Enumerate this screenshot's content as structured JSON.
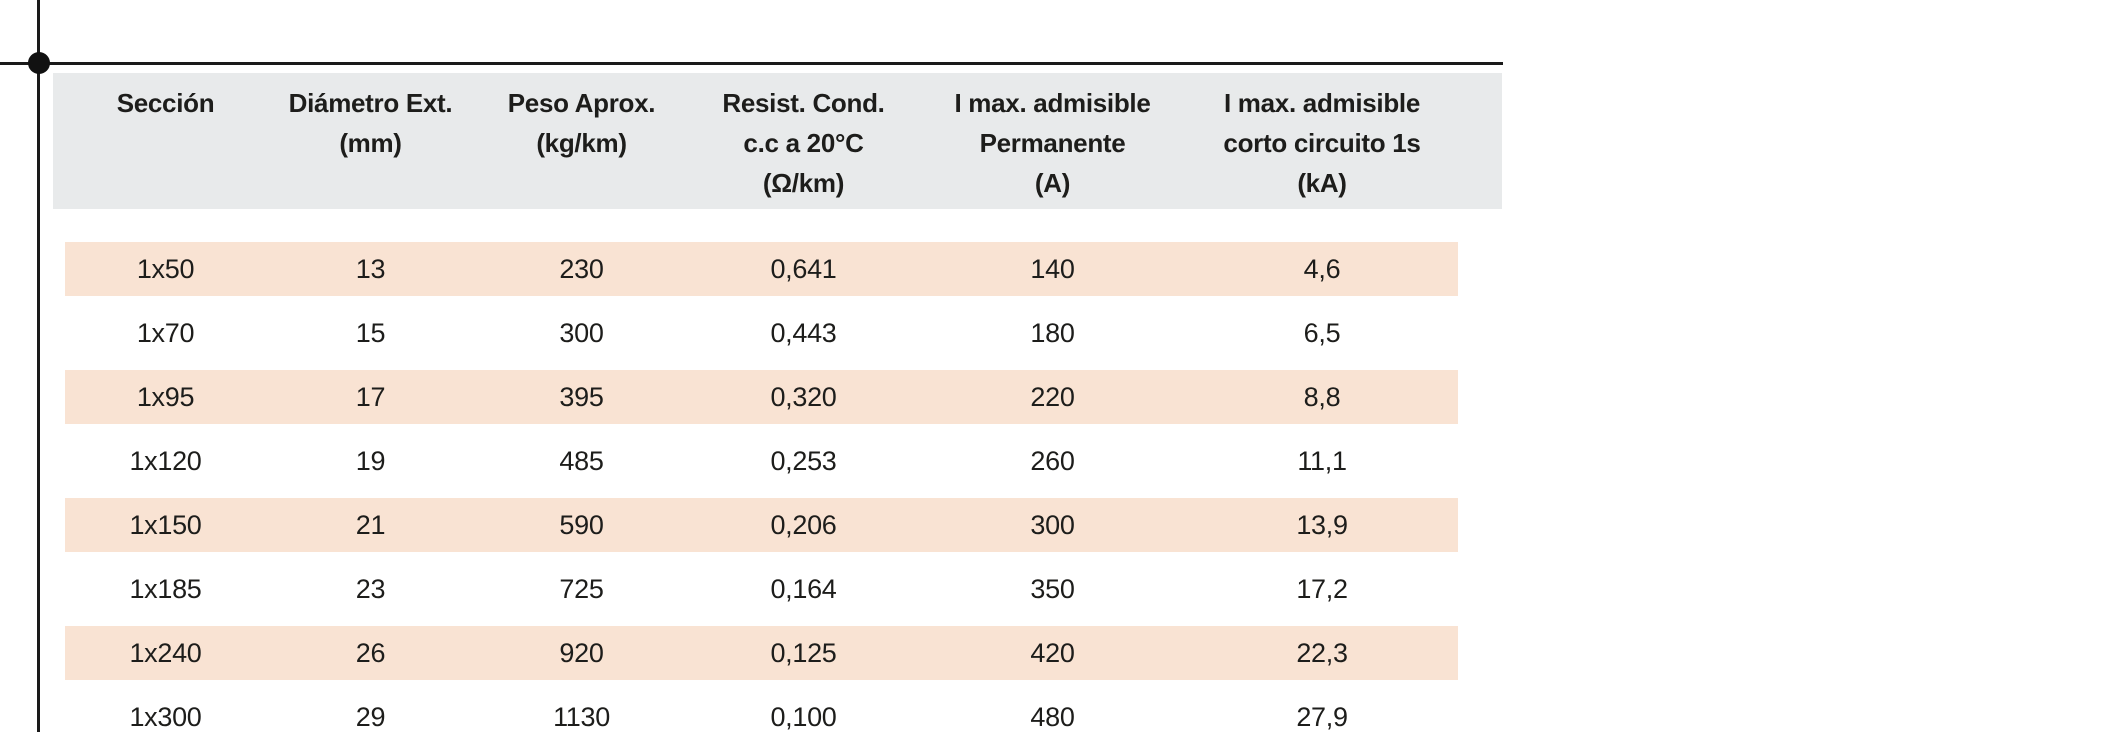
{
  "marks": {
    "vertical_line": "crop-mark",
    "horizontal_line": "crop-mark",
    "dot": "registration-dot"
  },
  "colors": {
    "header_bg": "#e8eaeb",
    "stripe_bg": "#f9e3d3",
    "text": "#1d1d1b",
    "mark": "#111111"
  },
  "table": {
    "columns": [
      {
        "lines": [
          "Sección"
        ]
      },
      {
        "lines": [
          "Diámetro Ext.",
          "(mm)"
        ]
      },
      {
        "lines": [
          "Peso Aprox.",
          "(kg/km)"
        ]
      },
      {
        "lines": [
          "Resist. Cond.",
          "c.c a 20°C",
          "(Ω/km)"
        ]
      },
      {
        "lines": [
          "I max. admisible",
          "Permanente",
          "(A)"
        ]
      },
      {
        "lines": [
          "I max. admisible",
          "corto circuito 1s",
          "(kA)"
        ]
      }
    ],
    "rows": [
      [
        "1x50",
        "13",
        "230",
        "0,641",
        "140",
        "4,6"
      ],
      [
        "1x70",
        "15",
        "300",
        "0,443",
        "180",
        "6,5"
      ],
      [
        "1x95",
        "17",
        "395",
        "0,320",
        "220",
        "8,8"
      ],
      [
        "1x120",
        "19",
        "485",
        "0,253",
        "260",
        "11,1"
      ],
      [
        "1x150",
        "21",
        "590",
        "0,206",
        "300",
        "13,9"
      ],
      [
        "1x185",
        "23",
        "725",
        "0,164",
        "350",
        "17,2"
      ],
      [
        "1x240",
        "26",
        "920",
        "0,125",
        "420",
        "22,3"
      ],
      [
        "1x300",
        "29",
        "1130",
        "0,100",
        "480",
        "27,9"
      ]
    ]
  }
}
